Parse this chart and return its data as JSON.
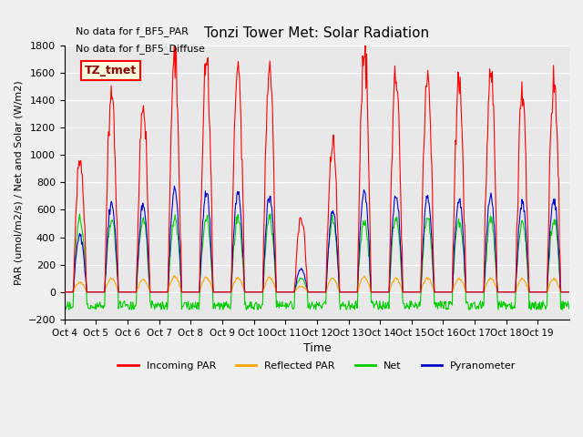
{
  "title": "Tonzi Tower Met: Solar Radiation",
  "ylabel": "PAR (umol/m2/s) / Net and Solar (W/m2)",
  "xlabel": "Time",
  "ylim": [
    -200,
    1800
  ],
  "bg_color": "#e8e8e8",
  "annotations": [
    "No data for f_BF5_PAR",
    "No data for f_BF5_Diffuse"
  ],
  "legend_label": "TZ_tmet",
  "xtick_labels": [
    "Oct 4",
    "Oct 5",
    "Oct 6",
    "Oct 7",
    "Oct 8",
    "Oct 9",
    "Oct 10",
    "Oct 11",
    "Oct 12",
    "Oct 13",
    "Oct 14",
    "Oct 15",
    "Oct 16",
    "Oct 17",
    "Oct 18",
    "Oct 19"
  ],
  "series": {
    "incoming_par": {
      "color": "#ff0000",
      "label": "Incoming PAR"
    },
    "reflected_par": {
      "color": "#ffa500",
      "label": "Reflected PAR"
    },
    "net": {
      "color": "#00cc00",
      "label": "Net"
    },
    "pyranometer": {
      "color": "#0000cc",
      "label": "Pyranometer"
    }
  },
  "n_days": 16,
  "day_peaks_incoming": [
    980,
    1460,
    1370,
    1750,
    1660,
    1640,
    1620,
    530,
    1100,
    1760,
    1590,
    1600,
    1570,
    1610,
    1470,
    1540
  ],
  "day_peaks_pyranometer": [
    410,
    650,
    640,
    750,
    730,
    720,
    710,
    170,
    600,
    750,
    700,
    695,
    680,
    700,
    645,
    680
  ],
  "day_peaks_reflected": [
    70,
    100,
    90,
    110,
    110,
    105,
    105,
    40,
    100,
    110,
    100,
    100,
    95,
    100,
    95,
    95
  ],
  "day_peaks_net": [
    530,
    535,
    530,
    535,
    530,
    530,
    530,
    100,
    530,
    520,
    525,
    530,
    525,
    525,
    520,
    520
  ],
  "day_night_dip_net": -130,
  "pts_per_day": 48
}
